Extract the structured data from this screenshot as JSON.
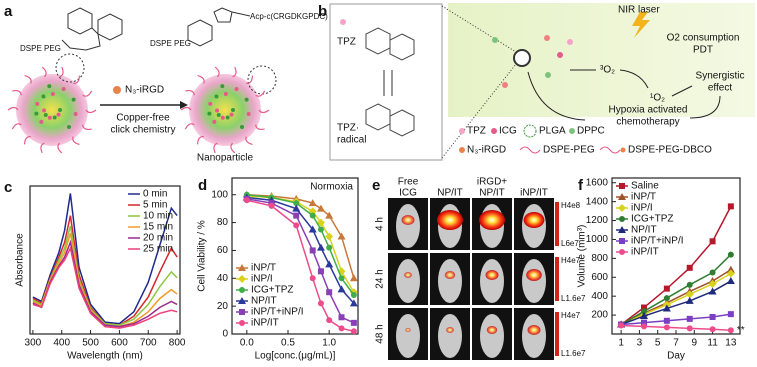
{
  "panel_a": {
    "label": "a",
    "dspe_left": "DSPE PEG",
    "dspe_right": "DSPE PEG",
    "peptide": "Acp-c(CRGDKGPDC)",
    "reagent": "N₃-iRGD",
    "condition": [
      "Copper-free",
      "click chemistry"
    ],
    "product": "Nanoparticle"
  },
  "panel_b": {
    "label": "b",
    "tpz": "TPZ",
    "radical": [
      "TPZ·",
      "radical"
    ],
    "laser": "NIR laser",
    "pdt": [
      "O2 consumption",
      "PDT"
    ],
    "triplet": "³O₂",
    "singlet": "¹O₂",
    "synergy": [
      "Synergistic",
      "effect"
    ],
    "chemo": [
      "Hypoxia activated",
      "chemotherapy"
    ],
    "legend": [
      "TPZ",
      "ICG",
      "PLGA",
      "DPPC",
      "N₃-iRGD",
      "DSPE-PEG",
      "DSPE-PEG-DBCO"
    ]
  },
  "panel_e": {
    "label": "e",
    "columns": [
      [
        "Free",
        "ICG"
      ],
      [
        "NP/IT"
      ],
      [
        "iRGD+",
        "NP/IT"
      ],
      [
        "iNP/IT"
      ]
    ],
    "rows": [
      "4 h",
      "24 h",
      "48 h"
    ],
    "scales": [
      [
        "H4e8",
        "L6e7"
      ],
      [
        "H4e7",
        "L1.6e7"
      ],
      [
        "H4e7",
        "L1.6e7"
      ]
    ]
  },
  "chart_data": [
    {
      "type": "line",
      "panel": "c",
      "xlabel": "Wavelength (nm)",
      "ylabel": "Absorbance",
      "legend": "upper right",
      "markers": false,
      "x": [
        300,
        330,
        360,
        390,
        410,
        430,
        460,
        500,
        550,
        600,
        650,
        700,
        740,
        780,
        800
      ],
      "xlim": [
        290,
        810
      ],
      "xticks": [
        300,
        400,
        500,
        600,
        700,
        800
      ],
      "ylim": [
        0,
        1
      ],
      "series": [
        {
          "name": "0 min",
          "color": "#1f2a8c",
          "values": [
            0.25,
            0.22,
            0.4,
            0.55,
            0.7,
            0.95,
            0.45,
            0.2,
            0.08,
            0.07,
            0.15,
            0.35,
            0.6,
            0.85,
            0.8
          ]
        },
        {
          "name": "5 min",
          "color": "#d6262b",
          "values": [
            0.24,
            0.21,
            0.38,
            0.52,
            0.62,
            0.8,
            0.4,
            0.18,
            0.07,
            0.06,
            0.12,
            0.25,
            0.42,
            0.58,
            0.52
          ]
        },
        {
          "name": "10 min",
          "color": "#8cc63f",
          "values": [
            0.23,
            0.2,
            0.37,
            0.5,
            0.58,
            0.73,
            0.37,
            0.17,
            0.07,
            0.06,
            0.1,
            0.2,
            0.32,
            0.42,
            0.38
          ]
        },
        {
          "name": "15 min",
          "color": "#f39c2b",
          "values": [
            0.22,
            0.19,
            0.36,
            0.48,
            0.55,
            0.68,
            0.35,
            0.16,
            0.06,
            0.05,
            0.08,
            0.15,
            0.24,
            0.3,
            0.27
          ]
        },
        {
          "name": "20 min",
          "color": "#9b2c8f",
          "values": [
            0.21,
            0.18,
            0.35,
            0.46,
            0.52,
            0.62,
            0.33,
            0.15,
            0.06,
            0.05,
            0.07,
            0.12,
            0.18,
            0.22,
            0.2
          ]
        },
        {
          "name": "25 min",
          "color": "#ee3f7a",
          "values": [
            0.2,
            0.18,
            0.34,
            0.45,
            0.5,
            0.58,
            0.31,
            0.14,
            0.05,
            0.04,
            0.06,
            0.1,
            0.14,
            0.16,
            0.15
          ]
        }
      ]
    },
    {
      "type": "line",
      "panel": "d",
      "title": "Normoxia",
      "xlabel": "Log[conc.(μg/mL)]",
      "ylabel": "Cell Viability / %",
      "legend": "lower left",
      "markers": true,
      "x": [
        0,
        0.3,
        0.6,
        0.8,
        0.9,
        1.0,
        1.15,
        1.3
      ],
      "xlim": [
        -0.18,
        1.35
      ],
      "xticks": [
        {
          "value": 0,
          "label": "0.0"
        },
        0.5,
        {
          "value": 1,
          "label": "1.0"
        }
      ],
      "ylim": [
        0,
        112
      ],
      "yticks": [
        0,
        20,
        40,
        60,
        80,
        100
      ],
      "series": [
        {
          "name": "iNP/T",
          "color": "#c8783a",
          "marker": "triangle",
          "values": [
            100,
            99,
            97,
            94,
            90,
            85,
            70,
            40
          ]
        },
        {
          "name": "iNP/I",
          "color": "#d8d11e",
          "marker": "diamond",
          "values": [
            99,
            98,
            95,
            88,
            80,
            70,
            45,
            30
          ]
        },
        {
          "name": "ICG+TPZ",
          "color": "#3fae49",
          "marker": "circle",
          "values": [
            100,
            98,
            94,
            85,
            75,
            62,
            40,
            28
          ]
        },
        {
          "name": "NP/IT",
          "color": "#2b3a9a",
          "marker": "triangle",
          "values": [
            98,
            96,
            90,
            75,
            62,
            50,
            32,
            22
          ]
        },
        {
          "name": "iNP/T+iNP/I",
          "color": "#8a3fb5",
          "marker": "square",
          "values": [
            97,
            94,
            85,
            60,
            45,
            30,
            12,
            8
          ]
        },
        {
          "name": "iNP/IT",
          "color": "#ee4b8c",
          "marker": "circle",
          "values": [
            96,
            92,
            78,
            40,
            22,
            10,
            4,
            2
          ]
        }
      ]
    },
    {
      "type": "line",
      "panel": "f",
      "xlabel": "Day",
      "ylabel": "Volume (mm³)",
      "legend": "upper left",
      "markers": true,
      "annotation": "**",
      "x": [
        1,
        3.5,
        6,
        8.5,
        11,
        13
      ],
      "xlim": [
        0,
        14
      ],
      "xticks": [
        1,
        3,
        5,
        7,
        9,
        11,
        13
      ],
      "ylim": [
        0,
        1650
      ],
      "yticks": [
        200,
        400,
        600,
        800,
        1000,
        1200,
        1400,
        1600
      ],
      "series": [
        {
          "name": "Saline",
          "color": "#b5172b",
          "marker": "square",
          "values": [
            100,
            280,
            480,
            700,
            980,
            1350
          ]
        },
        {
          "name": "iNP/T",
          "color": "#a0522d",
          "marker": "triangle",
          "values": [
            100,
            220,
            330,
            450,
            560,
            680
          ]
        },
        {
          "name": "iNP/I",
          "color": "#d8d11e",
          "marker": "diamond",
          "values": [
            100,
            210,
            310,
            420,
            530,
            640
          ]
        },
        {
          "name": "ICG+TPZ",
          "color": "#2e7d32",
          "marker": "circle",
          "values": [
            100,
            240,
            380,
            520,
            650,
            840
          ]
        },
        {
          "name": "NP/IT",
          "color": "#1f2a7a",
          "marker": "triangle",
          "values": [
            100,
            190,
            270,
            350,
            450,
            560
          ]
        },
        {
          "name": "iNP/T+iNP/I",
          "color": "#7b3fc4",
          "marker": "square",
          "values": [
            100,
            120,
            140,
            160,
            180,
            210
          ]
        },
        {
          "name": "iNP/IT",
          "color": "#ee4b8c",
          "marker": "circle",
          "values": [
            90,
            80,
            70,
            60,
            50,
            40
          ]
        }
      ]
    }
  ]
}
